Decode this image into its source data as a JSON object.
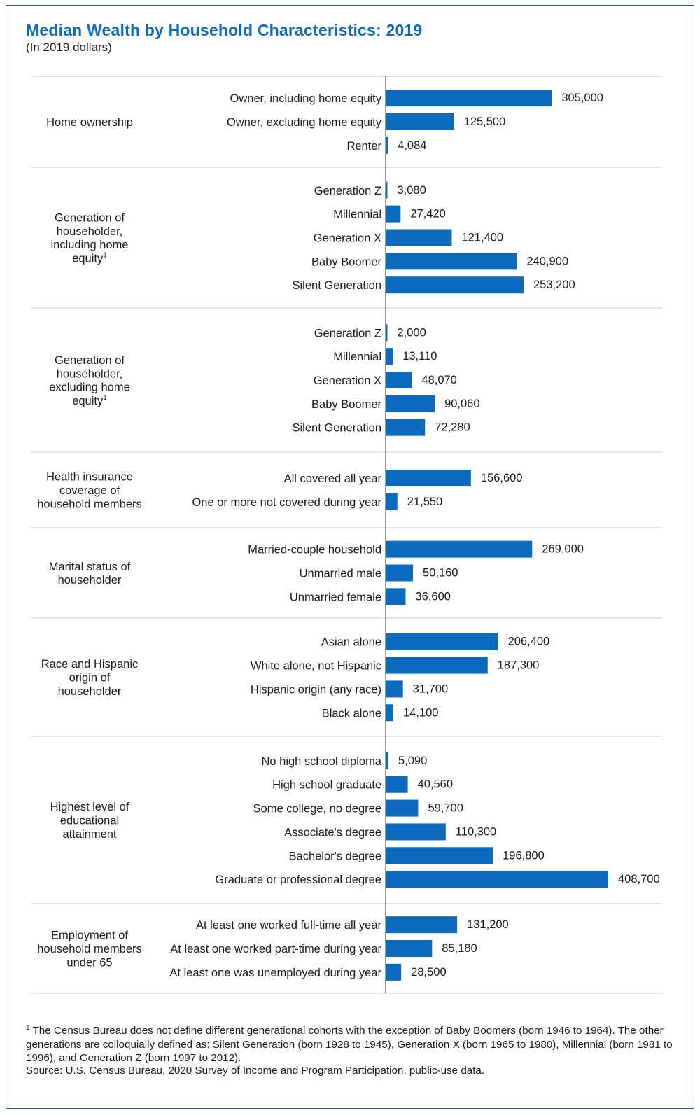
{
  "title": "Median Wealth by Household Characteristics: 2019",
  "subtitle": "(In 2019 dollars)",
  "footnote": {
    "marker": "1",
    "text": "The Census Bureau does not define different generational cohorts with the exception of Baby Boomers (born 1946 to 1964). The other generations are colloquially defined as: Silent Generation (born 1928 to 1945), Generation X (born 1965 to 1980), Millennial (born 1981 to 1996), and  Generation Z (born 1997 to 2012)."
  },
  "source": "Source: U.S. Census Bureau, 2020 Survey of Income and Program Participation, public-use data.",
  "colors": {
    "bar": "#0d6bbf",
    "title": "#0d6bbf",
    "frame": "#1f5fa8",
    "divider": "#cccccc",
    "axis": "#333333"
  },
  "chart_data": {
    "type": "bar",
    "orientation": "horizontal",
    "xlim": [
      0,
      408700
    ],
    "grid": false,
    "legend": "none",
    "groups": [
      {
        "label": "Home ownership",
        "footnote": "",
        "categories": [
          "Owner, including home equity",
          "Owner, excluding home equity",
          "Renter"
        ],
        "values": [
          305000,
          125500,
          4084
        ],
        "value_labels": [
          "305,000",
          "125,500",
          "4,084"
        ]
      },
      {
        "label": "Generation of householder, including home equity",
        "footnote": "1",
        "categories": [
          "Generation Z",
          "Millennial",
          "Generation X",
          "Baby Boomer",
          "Silent Generation"
        ],
        "values": [
          3080,
          27420,
          121400,
          240900,
          253200
        ],
        "value_labels": [
          "3,080",
          "27,420",
          "121,400",
          "240,900",
          "253,200"
        ]
      },
      {
        "label": "Generation of householder, excluding home equity",
        "footnote": "1",
        "categories": [
          "Generation Z",
          "Millennial",
          "Generation X",
          "Baby Boomer",
          "Silent Generation"
        ],
        "values": [
          2000,
          13110,
          48070,
          90060,
          72280
        ],
        "value_labels": [
          "2,000",
          "13,110",
          "48,070",
          "90,060",
          "72,280"
        ]
      },
      {
        "label": "Health insurance coverage of household members",
        "footnote": "",
        "categories": [
          "All covered all year",
          "One or more not covered during year"
        ],
        "values": [
          156600,
          21550
        ],
        "value_labels": [
          "156,600",
          "21,550"
        ]
      },
      {
        "label": "Marital status of householder",
        "footnote": "",
        "categories": [
          "Married-couple household",
          "Unmarried male",
          "Unmarried female"
        ],
        "values": [
          269000,
          50160,
          36600
        ],
        "value_labels": [
          "269,000",
          "50,160",
          "36,600"
        ]
      },
      {
        "label": "Race and Hispanic origin of householder",
        "footnote": "",
        "categories": [
          "Asian alone",
          "White alone, not Hispanic",
          "Hispanic origin (any race)",
          "Black alone"
        ],
        "values": [
          206400,
          187300,
          31700,
          14100
        ],
        "value_labels": [
          "206,400",
          "187,300",
          "31,700",
          "14,100"
        ]
      },
      {
        "label": "Highest level of educational attainment",
        "footnote": "",
        "categories": [
          "No high school diploma",
          "High school graduate",
          "Some college, no degree",
          "Associate's degree",
          "Bachelor's degree",
          "Graduate or professional degree"
        ],
        "values": [
          5090,
          40560,
          59700,
          110300,
          196800,
          408700
        ],
        "value_labels": [
          "5,090",
          "40,560",
          "59,700",
          "110,300",
          "196,800",
          "408,700"
        ]
      },
      {
        "label": "Employment of household members under 65",
        "footnote": "",
        "categories": [
          "At least one worked full-time all year",
          "At least one worked part-time during year",
          "At least one was unemployed during year"
        ],
        "values": [
          131200,
          85180,
          28500
        ],
        "value_labels": [
          "131,200",
          "85,180",
          "28,500"
        ]
      }
    ]
  }
}
